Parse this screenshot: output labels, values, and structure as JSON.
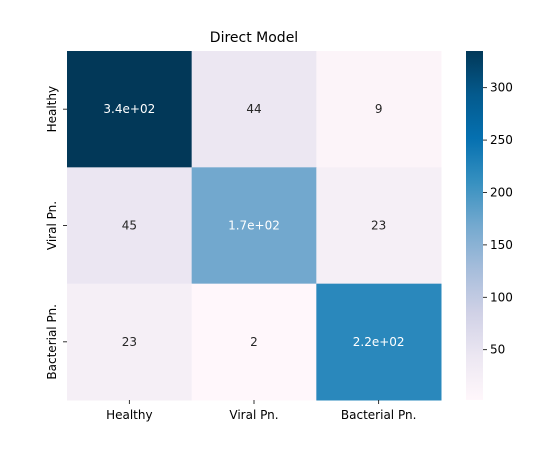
{
  "chart_data": {
    "type": "heatmap",
    "title": "Direct Model",
    "xlabel": "",
    "ylabel": "",
    "x_categories": [
      "Healthy",
      "Viral Pn.",
      "Bacterial Pn."
    ],
    "y_categories": [
      "Healthy",
      "Viral Pn.",
      "Bacterial Pn."
    ],
    "values": [
      [
        340,
        44,
        9
      ],
      [
        45,
        170,
        23
      ],
      [
        23,
        2,
        220
      ]
    ],
    "annotations": [
      [
        "3.4e+02",
        "44",
        "9"
      ],
      [
        "45",
        "1.7e+02",
        "23"
      ],
      [
        "23",
        "2",
        "2.2e+02"
      ]
    ],
    "colorbar": {
      "ticks": [
        50,
        100,
        150,
        200,
        250,
        300
      ],
      "vmin": 2,
      "vmax": 335,
      "colormap": "PuBu"
    },
    "grid": false,
    "legend": "colorbar-right"
  }
}
